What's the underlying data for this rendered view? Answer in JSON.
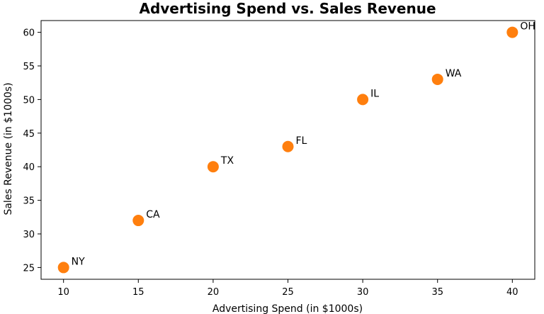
{
  "chart_data": {
    "type": "scatter",
    "title": "Advertising Spend vs. Sales Revenue",
    "xlabel": "Advertising Spend (in $1000s)",
    "ylabel": "Sales Revenue (in $1000s)",
    "xlim": [
      8.5,
      41.5
    ],
    "ylim": [
      23.25,
      61.75
    ],
    "xticks": [
      10,
      15,
      20,
      25,
      30,
      35,
      40
    ],
    "yticks": [
      25,
      30,
      35,
      40,
      45,
      50,
      55,
      60
    ],
    "grid": false,
    "marker_color": "#ff7f0e",
    "points": [
      {
        "label": "NY",
        "x": 10,
        "y": 25
      },
      {
        "label": "CA",
        "x": 15,
        "y": 32
      },
      {
        "label": "TX",
        "x": 20,
        "y": 40
      },
      {
        "label": "FL",
        "x": 25,
        "y": 43
      },
      {
        "label": "IL",
        "x": 30,
        "y": 50
      },
      {
        "label": "WA",
        "x": 35,
        "y": 53
      },
      {
        "label": "OH",
        "x": 40,
        "y": 60
      }
    ]
  }
}
